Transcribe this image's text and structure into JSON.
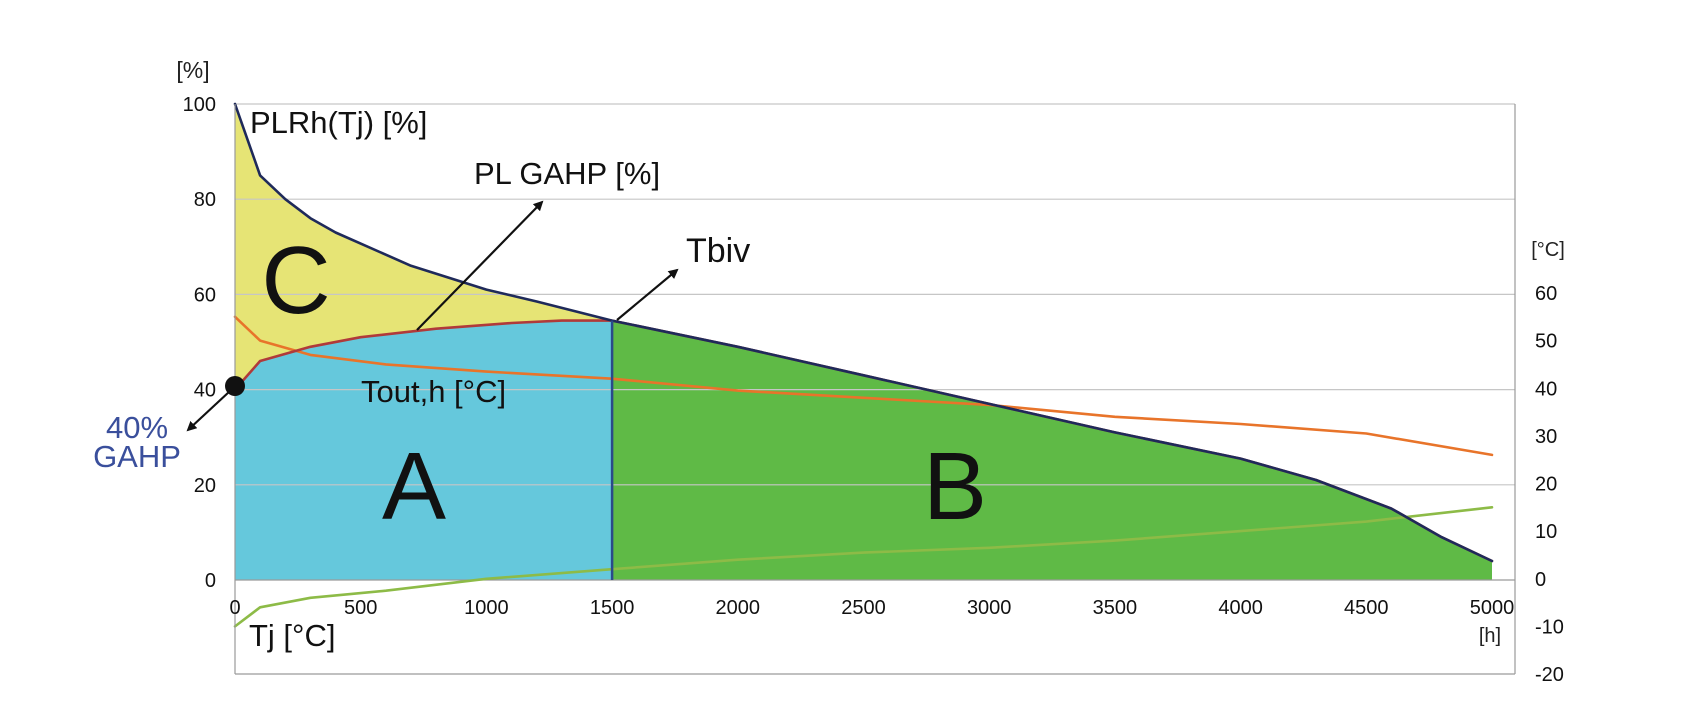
{
  "chart_data": {
    "type": "area",
    "x_axis": {
      "unit": "[h]",
      "range": [
        0,
        5000
      ],
      "ticks": [
        "0",
        "500",
        "1000",
        "1500",
        "2000",
        "2500",
        "3000",
        "3500",
        "4000",
        "4500",
        "5000"
      ]
    },
    "y_left": {
      "unit": "[%]",
      "range": [
        0,
        100
      ],
      "ticks": [
        "0",
        "20",
        "40",
        "60",
        "80",
        "100"
      ]
    },
    "y_right": {
      "unit": "[°C]",
      "range": [
        -20,
        60
      ],
      "ticks": [
        "-20",
        "-10",
        "0",
        "10",
        "20",
        "30",
        "40",
        "50",
        "60"
      ]
    },
    "grid": "horizontal",
    "series": [
      {
        "name": "PLRh(Tj) [%]",
        "axis": "left",
        "color": "#1f2a5a",
        "points": [
          [
            0,
            100
          ],
          [
            100,
            85
          ],
          [
            200,
            80
          ],
          [
            300,
            76
          ],
          [
            400,
            73
          ],
          [
            700,
            66
          ],
          [
            1000,
            61
          ],
          [
            1200,
            58.5
          ],
          [
            1500,
            54.5
          ],
          [
            2000,
            49
          ],
          [
            2500,
            43
          ],
          [
            3000,
            37
          ],
          [
            3500,
            31
          ],
          [
            4000,
            25.5
          ],
          [
            4300,
            21
          ],
          [
            4600,
            15
          ],
          [
            4800,
            9
          ],
          [
            5000,
            4
          ]
        ]
      },
      {
        "name": "PL GAHP [%]",
        "axis": "left",
        "color": "#b03a3a",
        "points": [
          [
            0,
            40
          ],
          [
            100,
            46
          ],
          [
            300,
            49
          ],
          [
            500,
            51
          ],
          [
            800,
            52.8
          ],
          [
            1100,
            54
          ],
          [
            1300,
            54.5
          ],
          [
            1500,
            54.5
          ],
          [
            2000,
            49
          ],
          [
            2500,
            43
          ],
          [
            3000,
            37
          ],
          [
            3500,
            31
          ],
          [
            4000,
            25.5
          ],
          [
            4300,
            21
          ],
          [
            4600,
            15
          ],
          [
            4800,
            9
          ],
          [
            5000,
            4
          ]
        ]
      },
      {
        "name": "Tout,h [°C]",
        "axis": "right",
        "color": "#e8742a",
        "points": [
          [
            0,
            55
          ],
          [
            100,
            50
          ],
          [
            300,
            47
          ],
          [
            600,
            45
          ],
          [
            1000,
            43.5
          ],
          [
            1500,
            42
          ],
          [
            2000,
            39.5
          ],
          [
            2500,
            38
          ],
          [
            3000,
            36.5
          ],
          [
            3500,
            34
          ],
          [
            4000,
            32.5
          ],
          [
            4500,
            30.5
          ],
          [
            5000,
            26
          ]
        ]
      },
      {
        "name": "Tj [°C]",
        "axis": "right",
        "color": "#8dbb47",
        "points": [
          [
            0,
            -10
          ],
          [
            100,
            -6
          ],
          [
            300,
            -4
          ],
          [
            600,
            -2.5
          ],
          [
            1000,
            0
          ],
          [
            1500,
            2
          ],
          [
            2000,
            4
          ],
          [
            2500,
            5.5
          ],
          [
            3000,
            6.5
          ],
          [
            3500,
            8
          ],
          [
            4000,
            10
          ],
          [
            4500,
            12
          ],
          [
            5000,
            15
          ]
        ]
      }
    ],
    "regions": [
      {
        "label": "A",
        "color": "#65c8dc",
        "from": 0,
        "to": 1500,
        "between": [
          "0",
          "PL GAHP [%]"
        ]
      },
      {
        "label": "B",
        "color": "#5fba46",
        "from": 1500,
        "to": 5000,
        "between": [
          "0",
          "PLRh(Tj) [%]"
        ]
      },
      {
        "label": "C",
        "color": "#e6e475",
        "from": 0,
        "to": 1500,
        "between": [
          "PL GAHP [%]",
          "PLRh(Tj) [%]"
        ]
      }
    ],
    "bivalent_x": 1500,
    "annotations": {
      "tbiv": "Tbiv",
      "gahp_pct": "40%",
      "gahp": "GAHP"
    }
  }
}
